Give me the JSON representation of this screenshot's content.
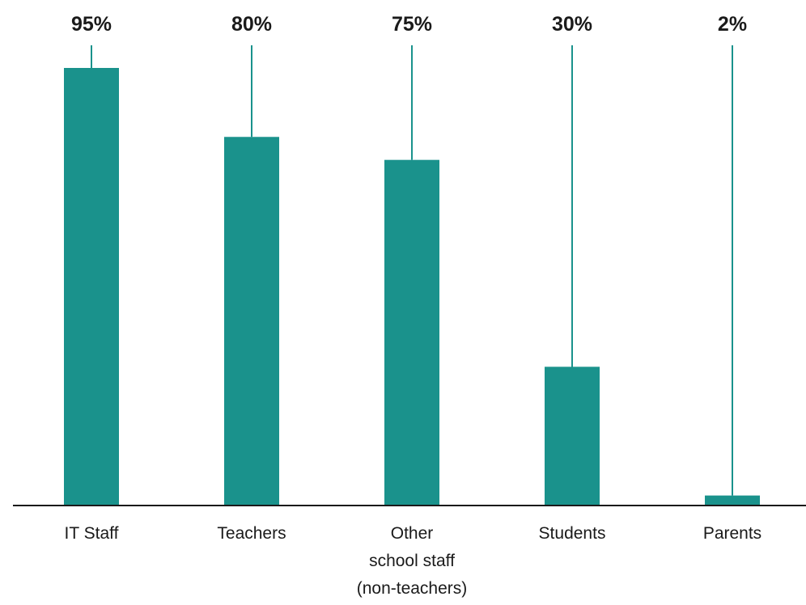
{
  "chart_data": {
    "type": "bar",
    "title": "",
    "xlabel": "",
    "ylabel": "",
    "ylim": [
      0,
      100
    ],
    "grid": false,
    "categories": [
      [
        "IT Staff"
      ],
      [
        "Teachers"
      ],
      [
        "Other",
        "school staff",
        "(non-teachers)"
      ],
      [
        "Students"
      ],
      [
        "Parents"
      ]
    ],
    "values": [
      95,
      80,
      75,
      30,
      2
    ],
    "value_labels": [
      "95%",
      "80%",
      "75%",
      "30%",
      "2%"
    ],
    "colors": {
      "bar": "#1a928c",
      "leader": "#1a928c",
      "axis": "#1a1a1a"
    }
  }
}
